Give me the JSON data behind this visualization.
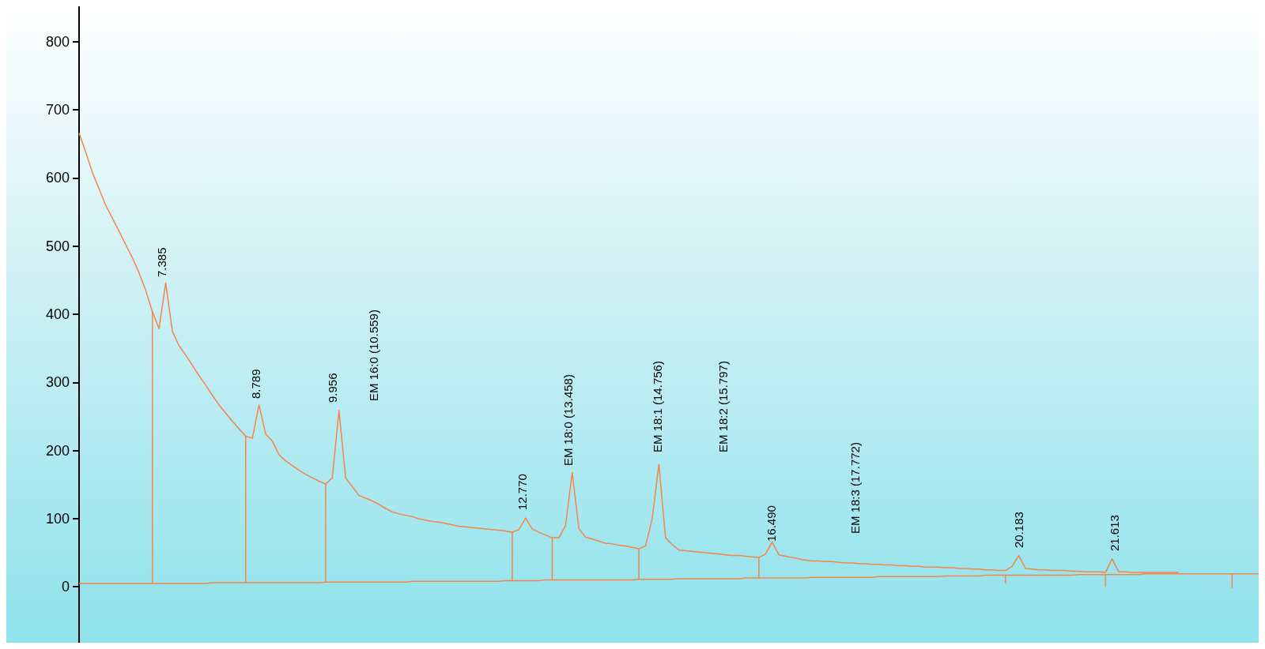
{
  "chart_data": {
    "type": "line",
    "ylim": [
      -82,
      852
    ],
    "yticks": [
      0,
      100,
      200,
      300,
      400,
      500,
      600,
      700,
      800
    ],
    "tick_labels": "y",
    "grid": false,
    "line_style": "solid",
    "categories": [
      null,
      null,
      null,
      null,
      null,
      null,
      null,
      null,
      null,
      null,
      null,
      null,
      null,
      null,
      null,
      null,
      null,
      null,
      null,
      null,
      null,
      null,
      null,
      null,
      null,
      null,
      null,
      null,
      null,
      null,
      null,
      null,
      null,
      null,
      null,
      null,
      null,
      null,
      null,
      null,
      null,
      null,
      null,
      null,
      null,
      null,
      null,
      null,
      null,
      null,
      null,
      null,
      null,
      null,
      null,
      null,
      null,
      null,
      null,
      null,
      null,
      null,
      null,
      null,
      null,
      null,
      null,
      null,
      null,
      null,
      null,
      null,
      null,
      null,
      null,
      null,
      null,
      null,
      null,
      null,
      null,
      null,
      null,
      null,
      null,
      null,
      null,
      null,
      null,
      null,
      null,
      null,
      null,
      null,
      null,
      null,
      null,
      null,
      null,
      null,
      null,
      null,
      null,
      null,
      null,
      null,
      null,
      null,
      null,
      null,
      null,
      null,
      null,
      null,
      null,
      null,
      null,
      null,
      null,
      null,
      null,
      null,
      null,
      null,
      null,
      null,
      null,
      null,
      null,
      null,
      null,
      null,
      null,
      null,
      null,
      null,
      null,
      null,
      null,
      null,
      null,
      null,
      null,
      null,
      null,
      null,
      null,
      null,
      null,
      null,
      null,
      null,
      null,
      null,
      null,
      null,
      null,
      null,
      null,
      null,
      null,
      null,
      null,
      null,
      null,
      null,
      null,
      null,
      null,
      null,
      null,
      null,
      null,
      null,
      null,
      null,
      null,
      null
    ],
    "series": [
      {
        "color": "#f5854a",
        "values": [
          666,
          638,
          608,
          584,
          560,
          541,
          522,
          502,
          483,
          461,
          435,
          404,
          379,
          446,
          375,
          354,
          340,
          325,
          310,
          296,
          281,
          267,
          255,
          243,
          232,
          221,
          218,
          267,
          224,
          214,
          194,
          185,
          178,
          171,
          165,
          160,
          155,
          151,
          160,
          259,
          160,
          147,
          134,
          130,
          126,
          121,
          115,
          110,
          107,
          105,
          103,
          100,
          98,
          96,
          95,
          93,
          91,
          89,
          88,
          87,
          86,
          85,
          84,
          83,
          82,
          80,
          84,
          101,
          85,
          80,
          76,
          72,
          72,
          90,
          168,
          85,
          73,
          70,
          67,
          64,
          63,
          61,
          60,
          58,
          56,
          60,
          100,
          180,
          72,
          62,
          54,
          53,
          52,
          51,
          50,
          49,
          48,
          47,
          46,
          46,
          45,
          44,
          43,
          48,
          66,
          47,
          45,
          43,
          41,
          39,
          38,
          38,
          37,
          37,
          36,
          35,
          35,
          34,
          34,
          33,
          33,
          32,
          32,
          31,
          31,
          30,
          30,
          29,
          29,
          29,
          28,
          28,
          27,
          27,
          26,
          26,
          25,
          25,
          24,
          24,
          30,
          46,
          27,
          26,
          25,
          25,
          24,
          24,
          24,
          23,
          23,
          22,
          22,
          22,
          21,
          41,
          22,
          22,
          21,
          21,
          21,
          21,
          21,
          21,
          21,
          21,
          null,
          null,
          null,
          null,
          null,
          null,
          null,
          null,
          null,
          null,
          null,
          null
        ],
        "name": null
      },
      {
        "color": "#f5854a",
        "values": [
          5,
          5,
          5,
          5,
          5,
          5,
          5,
          5,
          5,
          5,
          5,
          5,
          5,
          5,
          5,
          5,
          5,
          5,
          5,
          5,
          6,
          6,
          6,
          6,
          6,
          6,
          6,
          6,
          6,
          6,
          6,
          6,
          6,
          6,
          6,
          6,
          6,
          7,
          7,
          7,
          7,
          7,
          7,
          7,
          7,
          7,
          7,
          7,
          7,
          7,
          8,
          8,
          8,
          8,
          8,
          8,
          8,
          8,
          8,
          8,
          8,
          8,
          8,
          8,
          9,
          9,
          9,
          9,
          9,
          9,
          10,
          10,
          10,
          10,
          10,
          10,
          10,
          10,
          10,
          10,
          10,
          10,
          10,
          10,
          11,
          11,
          11,
          11,
          11,
          11,
          12,
          12,
          12,
          12,
          12,
          12,
          12,
          12,
          12,
          12,
          13,
          13,
          13,
          13,
          13,
          13,
          13,
          13,
          13,
          13,
          14,
          14,
          14,
          14,
          14,
          14,
          14,
          14,
          14,
          14,
          15,
          15,
          15,
          15,
          15,
          15,
          15,
          15,
          15,
          15,
          16,
          16,
          16,
          16,
          16,
          16,
          17,
          17,
          17,
          17,
          17,
          17,
          17,
          17,
          17,
          17,
          17,
          17,
          17,
          17,
          18,
          18,
          18,
          18,
          18,
          18,
          18,
          18,
          18,
          18,
          19,
          19,
          19,
          19,
          19,
          19,
          19,
          19,
          19,
          19,
          19,
          19,
          19,
          19,
          19,
          19,
          19,
          19
        ],
        "errors": [
          null,
          null,
          null,
          null,
          null,
          null,
          null,
          null,
          null,
          null,
          null,
          [
            5,
            404
          ],
          null,
          null,
          null,
          null,
          null,
          null,
          null,
          null,
          null,
          null,
          null,
          null,
          null,
          [
            6,
            221
          ],
          null,
          null,
          null,
          null,
          null,
          null,
          null,
          null,
          null,
          null,
          null,
          [
            7,
            151
          ],
          null,
          null,
          null,
          null,
          null,
          null,
          null,
          null,
          null,
          null,
          null,
          null,
          null,
          null,
          null,
          null,
          null,
          null,
          null,
          null,
          null,
          null,
          null,
          null,
          null,
          null,
          null,
          [
            9,
            80
          ],
          null,
          null,
          null,
          null,
          null,
          [
            10,
            72
          ],
          null,
          null,
          null,
          null,
          null,
          null,
          null,
          null,
          null,
          null,
          null,
          null,
          [
            11,
            56
          ],
          null,
          null,
          null,
          null,
          null,
          null,
          null,
          null,
          null,
          null,
          null,
          null,
          null,
          null,
          null,
          null,
          null,
          [
            13,
            43
          ],
          null,
          null,
          null,
          null,
          null,
          null,
          null,
          null,
          null,
          null,
          null,
          null,
          null,
          null,
          null,
          null,
          null,
          null,
          null,
          null,
          null,
          null,
          null,
          null,
          null,
          null,
          null,
          null,
          null,
          null,
          null,
          null,
          null,
          null,
          null,
          null,
          [
            5,
            17
          ],
          null,
          null,
          null,
          null,
          null,
          null,
          null,
          null,
          null,
          null,
          null,
          null,
          null,
          null,
          [
            0,
            18
          ],
          null,
          null,
          null,
          null,
          null,
          null,
          null,
          null,
          null,
          null,
          null,
          null,
          null,
          null,
          null,
          null,
          null,
          null,
          [
            -2,
            19
          ],
          null,
          null,
          null,
          null
        ]
      }
    ],
    "annotations": [
      "7.385",
      "8.789",
      "9.956",
      "EM 16:0 (10.559)",
      "12.770",
      "EM 18:0 (13.458)",
      "EM 18:1 (14.756)",
      "EM 18:2 (15.797)",
      "16.490",
      "EM 18:3 (17.772)",
      "20.183",
      "21.613"
    ]
  }
}
